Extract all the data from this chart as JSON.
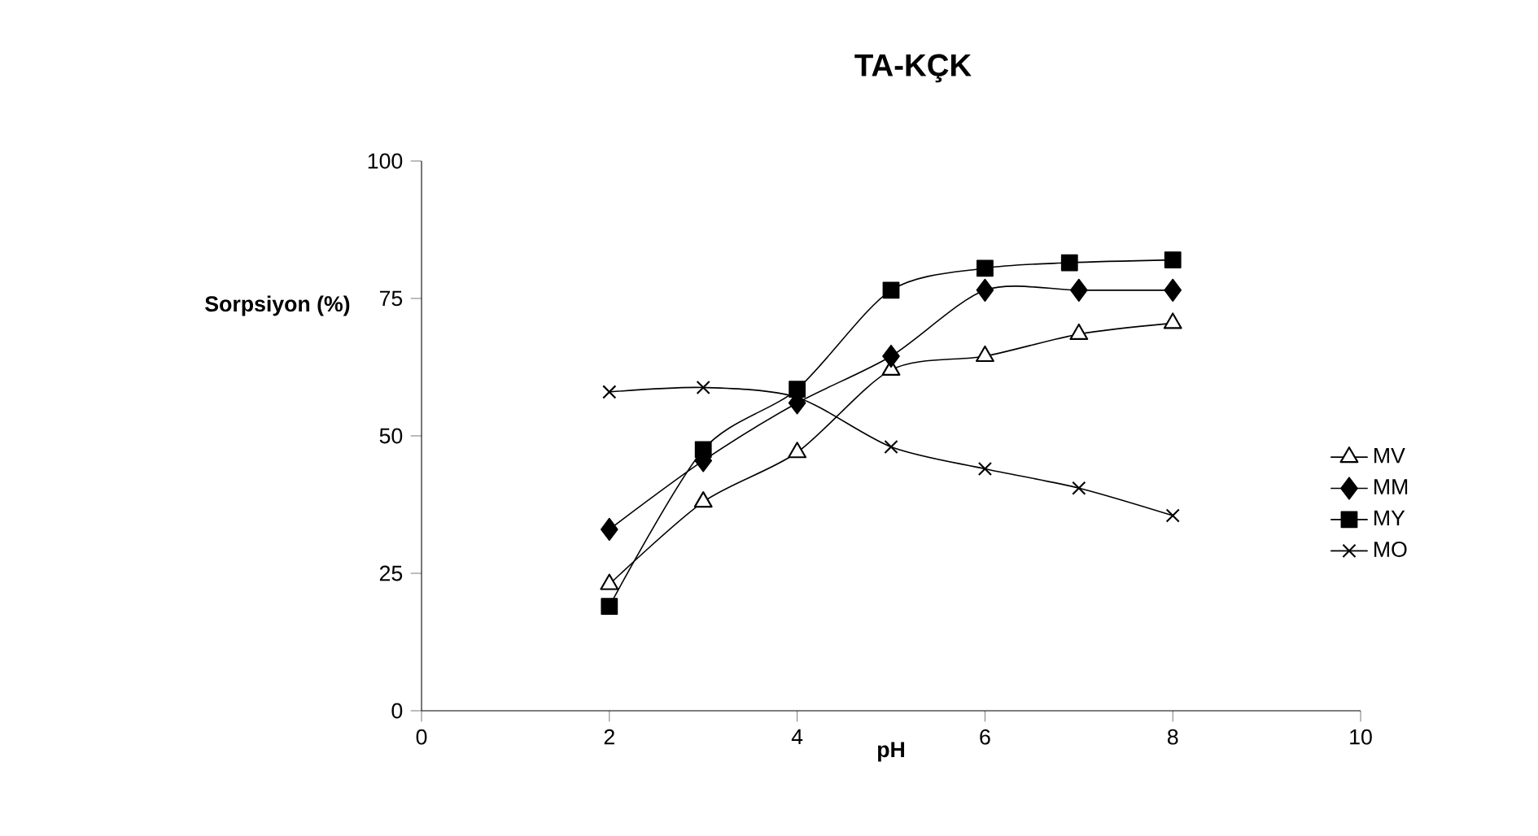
{
  "chart_data": {
    "type": "line",
    "title": "TA-KÇK",
    "xlabel": "pH",
    "ylabel": "Sorpsiyon (%)",
    "xlim": [
      0,
      10
    ],
    "xticks": [
      0,
      2,
      4,
      6,
      8,
      10
    ],
    "ylim": [
      0,
      100
    ],
    "yticks": [
      0,
      25,
      50,
      75,
      100
    ],
    "legend": "right",
    "grid": false,
    "series": [
      {
        "name": "MV",
        "color": "#000000",
        "marker": "triangle",
        "x": [
          2,
          3,
          4,
          5,
          6,
          7,
          8
        ],
        "values": [
          23,
          38,
          47,
          62,
          64.5,
          68.5,
          70.5
        ]
      },
      {
        "name": "MM",
        "color": "#000000",
        "marker": "diamond",
        "x": [
          2,
          3,
          4,
          5,
          6,
          7,
          8
        ],
        "values": [
          33,
          45.5,
          56,
          64.5,
          76.5,
          76.5,
          76.5
        ]
      },
      {
        "name": "MY",
        "color": "#000000",
        "marker": "square",
        "x": [
          2,
          3,
          4,
          5,
          6,
          6.9,
          8
        ],
        "values": [
          19,
          47.5,
          58.5,
          76.5,
          80.5,
          81.5,
          82
        ]
      },
      {
        "name": "MO",
        "color": "#000000",
        "marker": "cross",
        "x": [
          2,
          3,
          4,
          5,
          6,
          7,
          8
        ],
        "values": [
          58,
          58.8,
          57,
          48,
          44,
          40.5,
          35.5
        ]
      }
    ]
  }
}
